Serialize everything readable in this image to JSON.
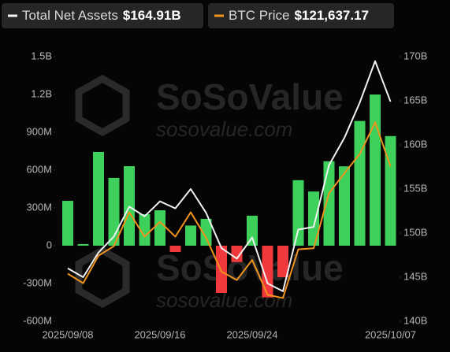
{
  "chart_data": {
    "type": "bar-line",
    "legend": [
      {
        "name": "Total Net Assets",
        "value": "$164.91B",
        "color": "#f2f2f2"
      },
      {
        "name": "BTC Price",
        "value": "$121,637.17",
        "color": "#f0931e"
      }
    ],
    "watermark": [
      "SoSoValue",
      "sosovalue.com"
    ],
    "categories": [
      "2025/09/08",
      null,
      null,
      null,
      null,
      null,
      "2025/09/16",
      null,
      null,
      null,
      null,
      null,
      "2025/09/24",
      null,
      null,
      null,
      null,
      null,
      null,
      null,
      null,
      "2025/10/07"
    ],
    "series": [
      {
        "kind": "bar",
        "positive_color": "#3dd15c",
        "negative_color": "#f0393c",
        "values": [
          356000000,
          13000000,
          744000000,
          538000000,
          631000000,
          250000000,
          281000000,
          -50000000,
          160000000,
          213000000,
          -375000000,
          -130000000,
          238000000,
          -410000000,
          -250000000,
          520000000,
          430000000,
          670000000,
          630000000,
          990000000,
          1200000000,
          870000000
        ]
      },
      {
        "kind": "line",
        "axis": "y2",
        "color": "#f2f2f2",
        "values": [
          146000000000,
          145000000000,
          147800000000,
          149600000000,
          153000000000,
          151900000000,
          153600000000,
          152800000000,
          155000000000,
          152300000000,
          148300000000,
          147100000000,
          149500000000,
          144300000000,
          143400000000,
          150400000000,
          150700000000,
          157700000000,
          160800000000,
          164800000000,
          169500000000,
          164910000000
        ]
      },
      {
        "kind": "line",
        "axis": "y3",
        "color": "#f0931e",
        "values": [
          111500,
          110600,
          113200,
          114100,
          117300,
          115000,
          116400,
          115000,
          117300,
          114900,
          111700,
          110900,
          112800,
          109500,
          109200,
          113800,
          113900,
          119100,
          121000,
          122800,
          125800,
          121637.17
        ]
      }
    ],
    "ylim": [
      -600000000,
      1500000000
    ],
    "yticks": [
      {
        "value": 1500000000,
        "label": "1.5B"
      },
      {
        "value": 1200000000,
        "label": "1.2B"
      },
      {
        "value": 900000000,
        "label": "900M"
      },
      {
        "value": 600000000,
        "label": "600M"
      },
      {
        "value": 300000000,
        "label": "300M"
      },
      0,
      {
        "value": -300000000,
        "label": "-300M"
      },
      {
        "value": -600000000,
        "label": "-600M"
      }
    ],
    "y2lim": [
      140000000000,
      170000000000
    ],
    "y2ticks": [
      {
        "value": 170000000000,
        "label": "170B"
      },
      {
        "value": 165000000000,
        "label": "165B"
      },
      {
        "value": 160000000000,
        "label": "160B"
      },
      {
        "value": 155000000000,
        "label": "155B"
      },
      {
        "value": 150000000000,
        "label": "150B"
      },
      {
        "value": 145000000000,
        "label": "145B"
      },
      {
        "value": 140000000000,
        "label": "140B"
      }
    ],
    "y3lim": [
      107000,
      132000
    ]
  }
}
